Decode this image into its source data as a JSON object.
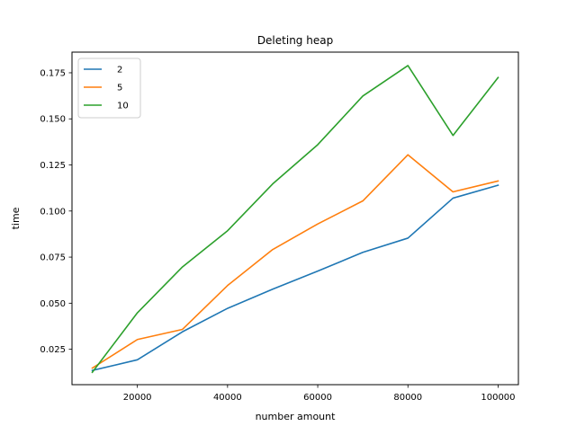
{
  "chart_data": {
    "type": "line",
    "title": "Deleting heap",
    "xlabel": "number amount",
    "ylabel": "time",
    "x": [
      10000,
      20000,
      30000,
      40000,
      50000,
      60000,
      70000,
      80000,
      90000,
      100000
    ],
    "xlim": [
      5500,
      104500
    ],
    "ylim": [
      0.0058,
      0.1862
    ],
    "xticks": [
      20000,
      40000,
      60000,
      80000,
      100000
    ],
    "xtick_labels": [
      "20000",
      "40000",
      "60000",
      "80000",
      "100000"
    ],
    "yticks": [
      0.025,
      0.05,
      0.075,
      0.1,
      0.125,
      0.15,
      0.175
    ],
    "ytick_labels": [
      "0.025",
      "0.050",
      "0.075",
      "0.100",
      "0.125",
      "0.150",
      "0.175"
    ],
    "grid": false,
    "legend_position": "upper-left",
    "series": [
      {
        "name": "2",
        "color": "#1f77b4",
        "values": [
          0.0135,
          0.0193,
          0.0345,
          0.0472,
          0.0576,
          0.0674,
          0.0776,
          0.0853,
          0.107,
          0.114
        ]
      },
      {
        "name": "5",
        "color": "#ff7f0e",
        "values": [
          0.0148,
          0.0303,
          0.0358,
          0.0596,
          0.0791,
          0.093,
          0.1055,
          0.1305,
          0.1104,
          0.1163
        ]
      },
      {
        "name": "10",
        "color": "#2ca02c",
        "values": [
          0.0125,
          0.0448,
          0.0697,
          0.0893,
          0.1147,
          0.136,
          0.1624,
          0.1789,
          0.141,
          0.1724
        ]
      }
    ]
  }
}
